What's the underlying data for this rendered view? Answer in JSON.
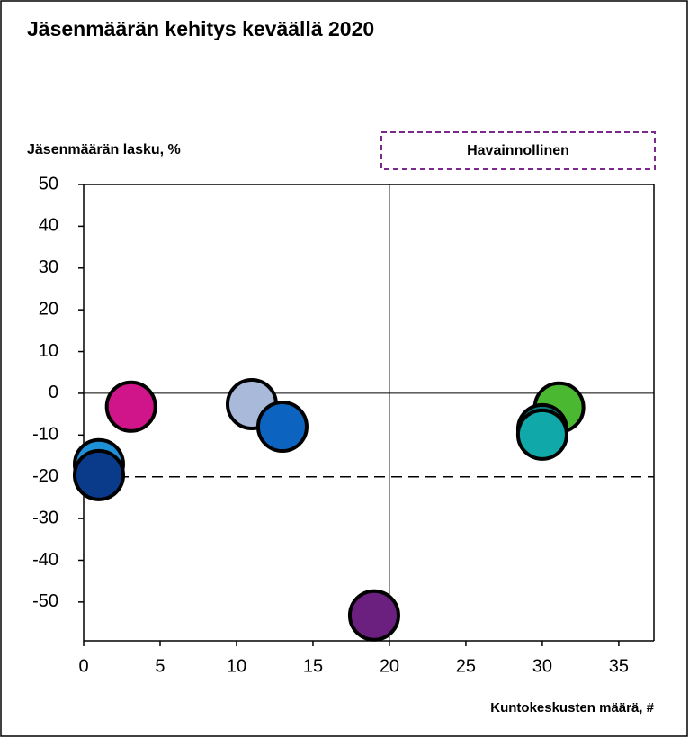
{
  "chart_data": {
    "type": "scatter",
    "title": "Jäsenmäärän kehitys keväällä 2020",
    "y_label": "Jäsenmäärän lasku, %",
    "x_label": "Kuntokeskusten määrä, #",
    "annotation": "Havainnollinen",
    "x": [
      3.1,
      11,
      13,
      19,
      1,
      1,
      31.1,
      30,
      30
    ],
    "y": [
      -3.2,
      -2.6,
      -8,
      -53.2,
      -17,
      -19.6,
      -3.4,
      -8.6,
      -9.9
    ],
    "colors": [
      "#d0158a",
      "#a9b9d9",
      "#0d64c0",
      "#6b2080",
      "#1e90d8",
      "#0a3a8a",
      "#4ab830",
      "#0a7a80",
      "#10a8a8"
    ],
    "xlim": [
      0,
      37.3
    ],
    "ylim": [
      -59.3,
      50
    ],
    "xticks": [
      0,
      5,
      10,
      15,
      20,
      25,
      30,
      35
    ],
    "yticks": [
      50,
      40,
      30,
      20,
      10,
      0,
      -10,
      -20,
      -30,
      -40,
      -50
    ],
    "vlines": [
      20
    ],
    "hlines": [
      0
    ],
    "dashed_hlines": [
      -20
    ]
  }
}
